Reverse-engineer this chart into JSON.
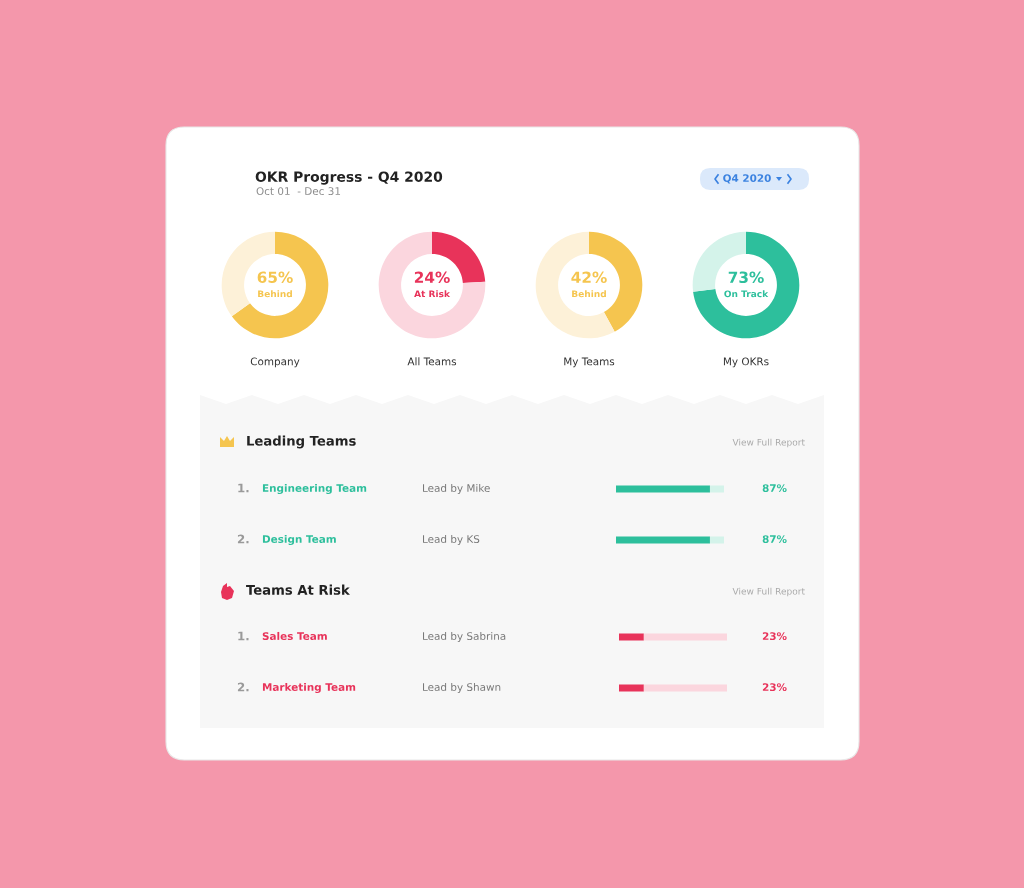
{
  "chart_data": [
    {
      "type": "other",
      "title": "OKR Progress - Q4 2020",
      "subtitle": "Oct 01  - Dec 31",
      "annotations": [
        "Q4 2020"
      ]
    },
    {
      "type": "donut",
      "xlabel": "Company",
      "categories": [
        "Behind",
        null
      ],
      "values": [
        65,
        35
      ],
      "colors": [
        "#f5c54f",
        "#fdf1d8"
      ],
      "value_labels": [
        "65%",
        null
      ]
    },
    {
      "type": "donut",
      "xlabel": "All Teams",
      "categories": [
        "At Risk",
        null
      ],
      "values": [
        24,
        76
      ],
      "colors": [
        "#e8335a",
        "#fbd6de"
      ],
      "value_labels": [
        "24%",
        null
      ]
    },
    {
      "type": "donut",
      "xlabel": "My Teams",
      "categories": [
        "Behind",
        null
      ],
      "values": [
        42,
        58
      ],
      "colors": [
        "#f5c54f",
        "#fdf1d8"
      ],
      "value_labels": [
        "42%",
        null
      ]
    },
    {
      "type": "donut",
      "xlabel": "My OKRs",
      "categories": [
        "On Track",
        null
      ],
      "values": [
        73,
        27
      ],
      "colors": [
        "#2dbf9c",
        "#d4f3ea"
      ],
      "value_labels": [
        "73%",
        null
      ]
    },
    {
      "type": "bar",
      "orientation": "horizontal",
      "stacked": true,
      "title": "Leading Teams",
      "categories": [
        "Engineering Team",
        "Design Team"
      ],
      "xlim": [
        0,
        100
      ],
      "series": [
        {
          "color": "#2dbf9c",
          "values": [
            87,
            87
          ],
          "value_labels": [
            "87%",
            "87%"
          ]
        },
        {
          "color": "#d4f3ea",
          "values": [
            13,
            13
          ]
        }
      ],
      "annotations": [
        "1.",
        "Lead by Mike",
        "2.",
        "Lead by KS",
        "View Full Report"
      ]
    },
    {
      "type": "bar",
      "orientation": "horizontal",
      "stacked": true,
      "title": "Teams At Risk",
      "categories": [
        "Sales Team",
        "Marketing Team"
      ],
      "xlim": [
        0,
        100
      ],
      "series": [
        {
          "color": "#e8335a",
          "values": [
            23,
            23
          ],
          "value_labels": [
            "23%",
            "23%"
          ]
        },
        {
          "color": "#fbd6de",
          "values": [
            77,
            77
          ]
        }
      ],
      "annotations": [
        "1.",
        "Lead by Sabrina",
        "2.",
        "Lead by Shawn",
        "View Full Report"
      ]
    }
  ]
}
